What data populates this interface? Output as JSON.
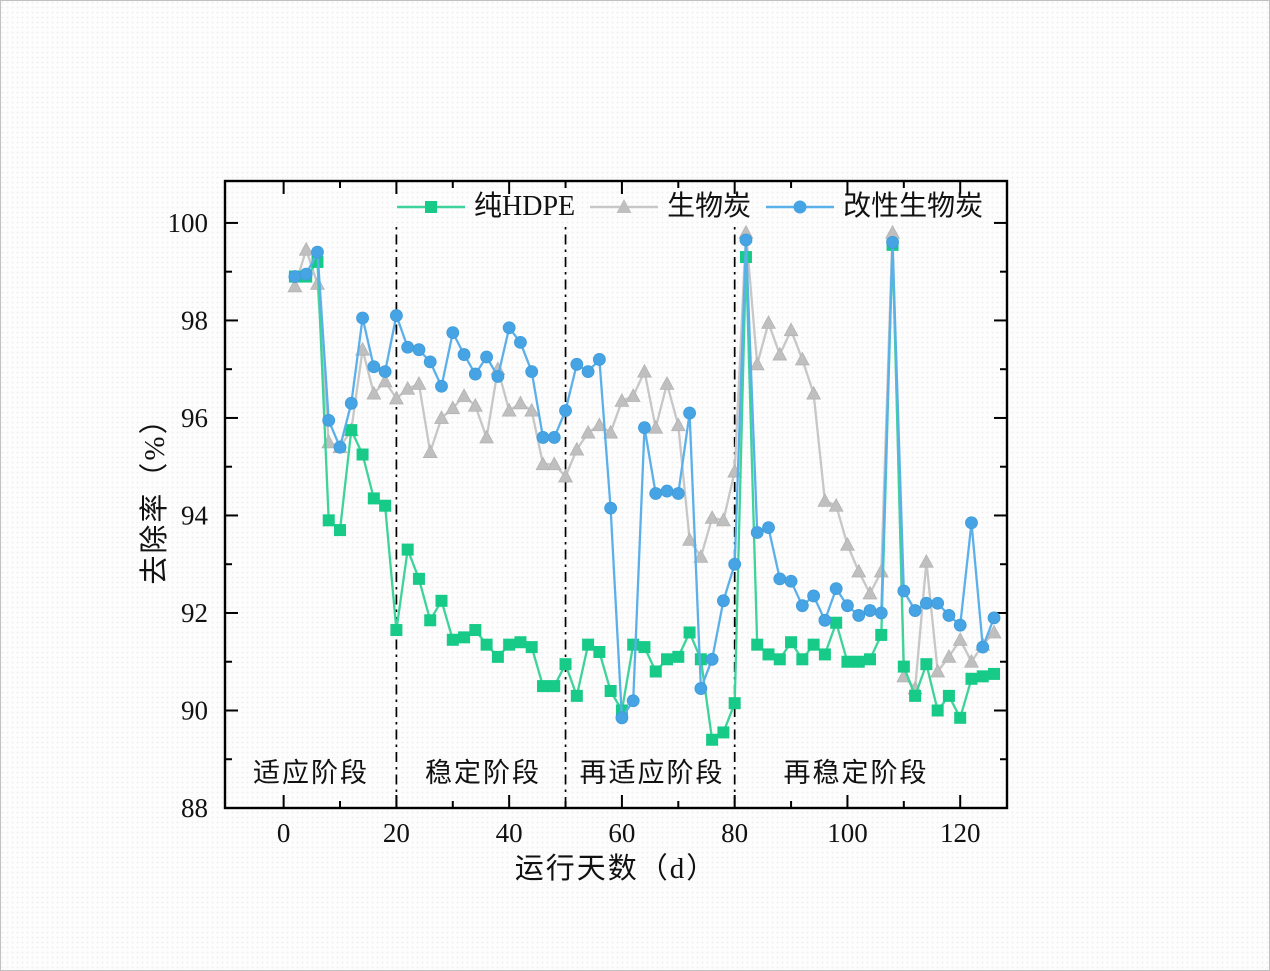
{
  "page": {
    "description": "Origin-style line chart of removal rate over operating days for three carrier materials",
    "background_color": "#fdfdfd",
    "axis_color": "#000000",
    "text_color": "#111111"
  },
  "axis_titles": {
    "x": "运行天数（d）",
    "y": "去除率（%）"
  },
  "chart_data": {
    "type": "line",
    "title": "",
    "xlabel": "运行天数（d）",
    "ylabel": "去除率（%）",
    "xlim": [
      -10.4,
      128.3
    ],
    "ylim": [
      88,
      100.86
    ],
    "grid": false,
    "legend_position": "top-center-inside",
    "x_major_ticks": [
      0,
      20,
      40,
      60,
      80,
      100,
      120
    ],
    "x_minor_ticks": [
      10,
      30,
      50,
      70,
      90,
      110
    ],
    "y_major_ticks": [
      88,
      90,
      92,
      94,
      96,
      98,
      100
    ],
    "y_minor_ticks": [
      89,
      91,
      93,
      95,
      97,
      99
    ],
    "phase_dividers_x": [
      20,
      50,
      80
    ],
    "divider_style": "dash-dot-black",
    "x": [
      2,
      4,
      6,
      8,
      10,
      12,
      14,
      16,
      18,
      20,
      22,
      24,
      26,
      28,
      30,
      32,
      34,
      36,
      38,
      40,
      42,
      44,
      46,
      48,
      50,
      52,
      54,
      56,
      58,
      60,
      62,
      64,
      66,
      68,
      70,
      72,
      74,
      76,
      78,
      80,
      82,
      84,
      86,
      88,
      90,
      92,
      94,
      96,
      98,
      100,
      102,
      104,
      106,
      108,
      110,
      112,
      114,
      116,
      118,
      120,
      122,
      124,
      126
    ],
    "series": [
      {
        "name": "纯HDPE",
        "marker": "square",
        "color": "#17ca88",
        "line_color": "#3dd39b",
        "values": [
          98.9,
          98.9,
          99.2,
          93.9,
          93.7,
          95.75,
          95.25,
          94.35,
          94.2,
          91.65,
          93.3,
          92.7,
          91.85,
          92.25,
          91.45,
          91.5,
          91.65,
          91.35,
          91.1,
          91.35,
          91.4,
          91.3,
          90.5,
          90.5,
          90.95,
          90.3,
          91.35,
          91.2,
          90.4,
          90.0,
          91.35,
          91.3,
          90.8,
          91.05,
          91.1,
          91.6,
          91.05,
          89.4,
          89.55,
          90.15,
          99.3,
          91.35,
          91.15,
          91.05,
          91.4,
          91.05,
          91.35,
          91.15,
          91.8,
          91.0,
          91.0,
          91.05,
          91.55,
          99.55,
          90.9,
          90.3,
          90.95,
          90.0,
          90.3,
          89.85,
          90.65,
          90.7,
          90.75
        ]
      },
      {
        "name": "生物炭",
        "marker": "triangle",
        "color": "#bfbfbf",
        "line_color": "#c7c7c7",
        "values": [
          98.7,
          99.45,
          98.75,
          95.5,
          95.4,
          95.75,
          97.4,
          96.5,
          96.75,
          96.4,
          96.6,
          96.7,
          95.3,
          96.0,
          96.2,
          96.45,
          96.25,
          95.6,
          97.0,
          96.15,
          96.3,
          96.15,
          95.05,
          95.05,
          94.8,
          95.35,
          95.7,
          95.85,
          95.7,
          96.35,
          96.45,
          96.95,
          95.8,
          96.7,
          95.85,
          93.5,
          93.15,
          93.95,
          93.9,
          94.9,
          99.8,
          97.1,
          97.95,
          97.3,
          97.8,
          97.2,
          96.5,
          94.3,
          94.2,
          93.4,
          92.85,
          92.4,
          92.85,
          99.8,
          90.7,
          90.45,
          93.05,
          90.8,
          91.1,
          91.45,
          91.0,
          91.35,
          91.6
        ]
      },
      {
        "name": "改性生物炭",
        "marker": "circle",
        "color": "#47a4e4",
        "line_color": "#5cb0ea",
        "values": [
          98.9,
          98.95,
          99.4,
          95.95,
          95.4,
          96.3,
          98.05,
          97.05,
          96.95,
          98.1,
          97.45,
          97.4,
          97.15,
          96.65,
          97.75,
          97.3,
          96.9,
          97.25,
          96.85,
          97.85,
          97.55,
          96.95,
          95.6,
          95.6,
          96.15,
          97.1,
          96.95,
          97.2,
          94.15,
          89.85,
          90.2,
          95.8,
          94.45,
          94.5,
          94.45,
          96.1,
          90.45,
          91.05,
          92.25,
          93.0,
          99.65,
          93.65,
          93.75,
          92.7,
          92.65,
          92.15,
          92.35,
          91.85,
          92.5,
          92.15,
          91.95,
          92.05,
          92.0,
          99.6,
          92.45,
          92.05,
          92.2,
          92.2,
          91.95,
          91.75,
          93.85,
          91.3,
          91.9
        ]
      }
    ],
    "phases": [
      {
        "label": "适应阶段",
        "x_day": 4.8
      },
      {
        "label": "稳定阶段",
        "x_day": 35.3
      },
      {
        "label": "再适应阶段",
        "x_day": 65.3
      },
      {
        "label": "再稳定阶段",
        "x_day": 101.5
      }
    ]
  }
}
